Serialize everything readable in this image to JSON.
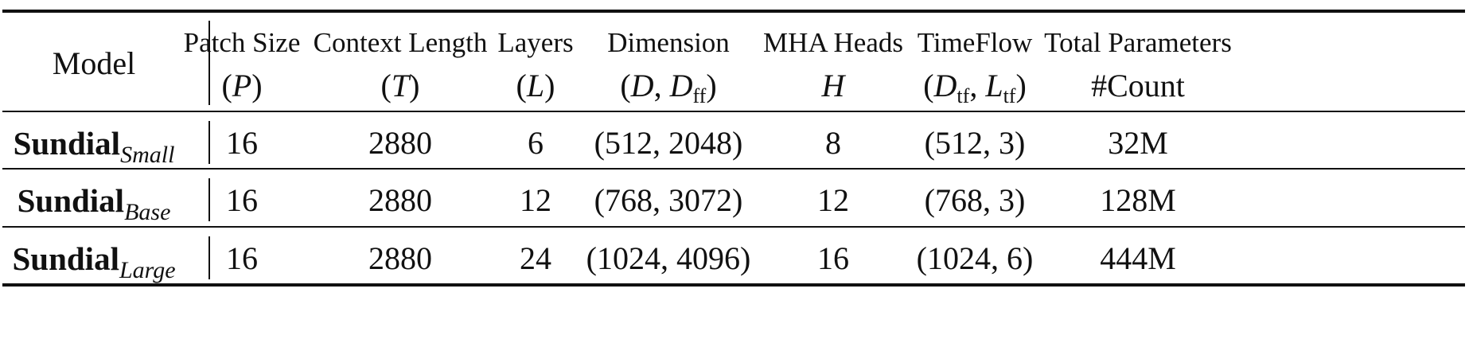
{
  "table": {
    "header": {
      "model": "Model",
      "columns": [
        {
          "name": "Patch Size",
          "symbol": "(P)"
        },
        {
          "name": "Context Length",
          "symbol": "(T)"
        },
        {
          "name": "Layers",
          "symbol": "(L)"
        },
        {
          "name": "Dimension",
          "symbol": "(D, Dff)"
        },
        {
          "name": "MHA Heads",
          "symbol": "H"
        },
        {
          "name": "TimeFlow",
          "symbol": "(Dtf, Ltf)"
        },
        {
          "name": "Total Parameters",
          "symbol": "#Count"
        }
      ]
    },
    "rows": [
      {
        "model": "Sundial",
        "variant": "Small",
        "patch_size": "16",
        "context_length": "2880",
        "layers": "6",
        "dimension": "(512, 2048)",
        "mha_heads": "8",
        "timeflow": "(512, 3)",
        "total_parameters": "32M"
      },
      {
        "model": "Sundial",
        "variant": "Base",
        "patch_size": "16",
        "context_length": "2880",
        "layers": "12",
        "dimension": "(768, 3072)",
        "mha_heads": "12",
        "timeflow": "(768, 3)",
        "total_parameters": "128M"
      },
      {
        "model": "Sundial",
        "variant": "Large",
        "patch_size": "16",
        "context_length": "2880",
        "layers": "24",
        "dimension": "(1024, 4096)",
        "mha_heads": "16",
        "timeflow": "(1024, 6)",
        "total_parameters": "444M"
      }
    ]
  }
}
